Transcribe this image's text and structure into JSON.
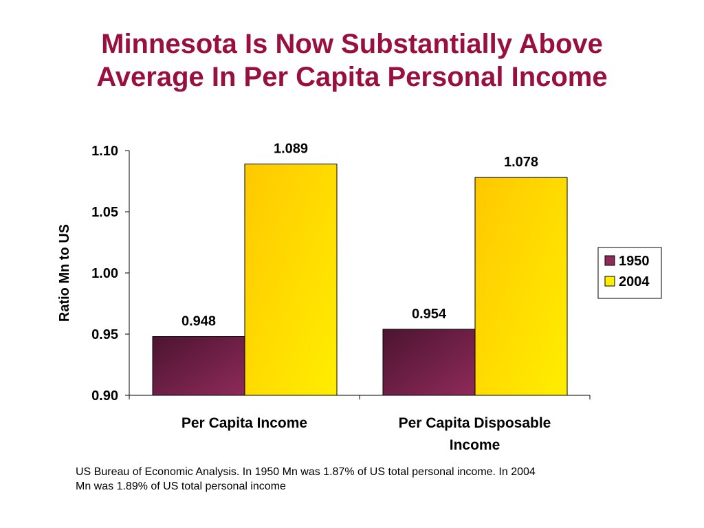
{
  "slide": {
    "title_line1": "Minnesota Is Now Substantially Above",
    "title_line2": "Average In Per Capita Personal Income",
    "caption_line1": "US Bureau of Economic Analysis.  In 1950 Mn was 1.87% of US total personal income.  In 2004",
    "caption_line2": "Mn was 1.89% of US total personal income"
  },
  "chart_data": {
    "type": "bar",
    "title": "Minnesota Is Now Substantially Above Average In Per Capita Personal Income",
    "ylabel": "Ratio Mn to US",
    "xlabel": "",
    "ylim": [
      0.9,
      1.1
    ],
    "yticks": [
      "0.90",
      "0.95",
      "1.00",
      "1.05",
      "1.10"
    ],
    "categories": [
      [
        "Per Capita Income"
      ],
      [
        "Per Capita Disposable",
        "Income"
      ]
    ],
    "series": [
      {
        "name": "1950",
        "values": [
          0.948,
          0.954
        ],
        "labels": [
          "0.948",
          "0.954"
        ],
        "color": "#8e2a5a",
        "color_dark": "#4c1430"
      },
      {
        "name": "2004",
        "values": [
          1.089,
          1.078
        ],
        "labels": [
          "1.089",
          "1.078"
        ],
        "color": "#ffee00",
        "color_dark": "#ffc800"
      }
    ],
    "legend_position": "right",
    "grid": false
  }
}
